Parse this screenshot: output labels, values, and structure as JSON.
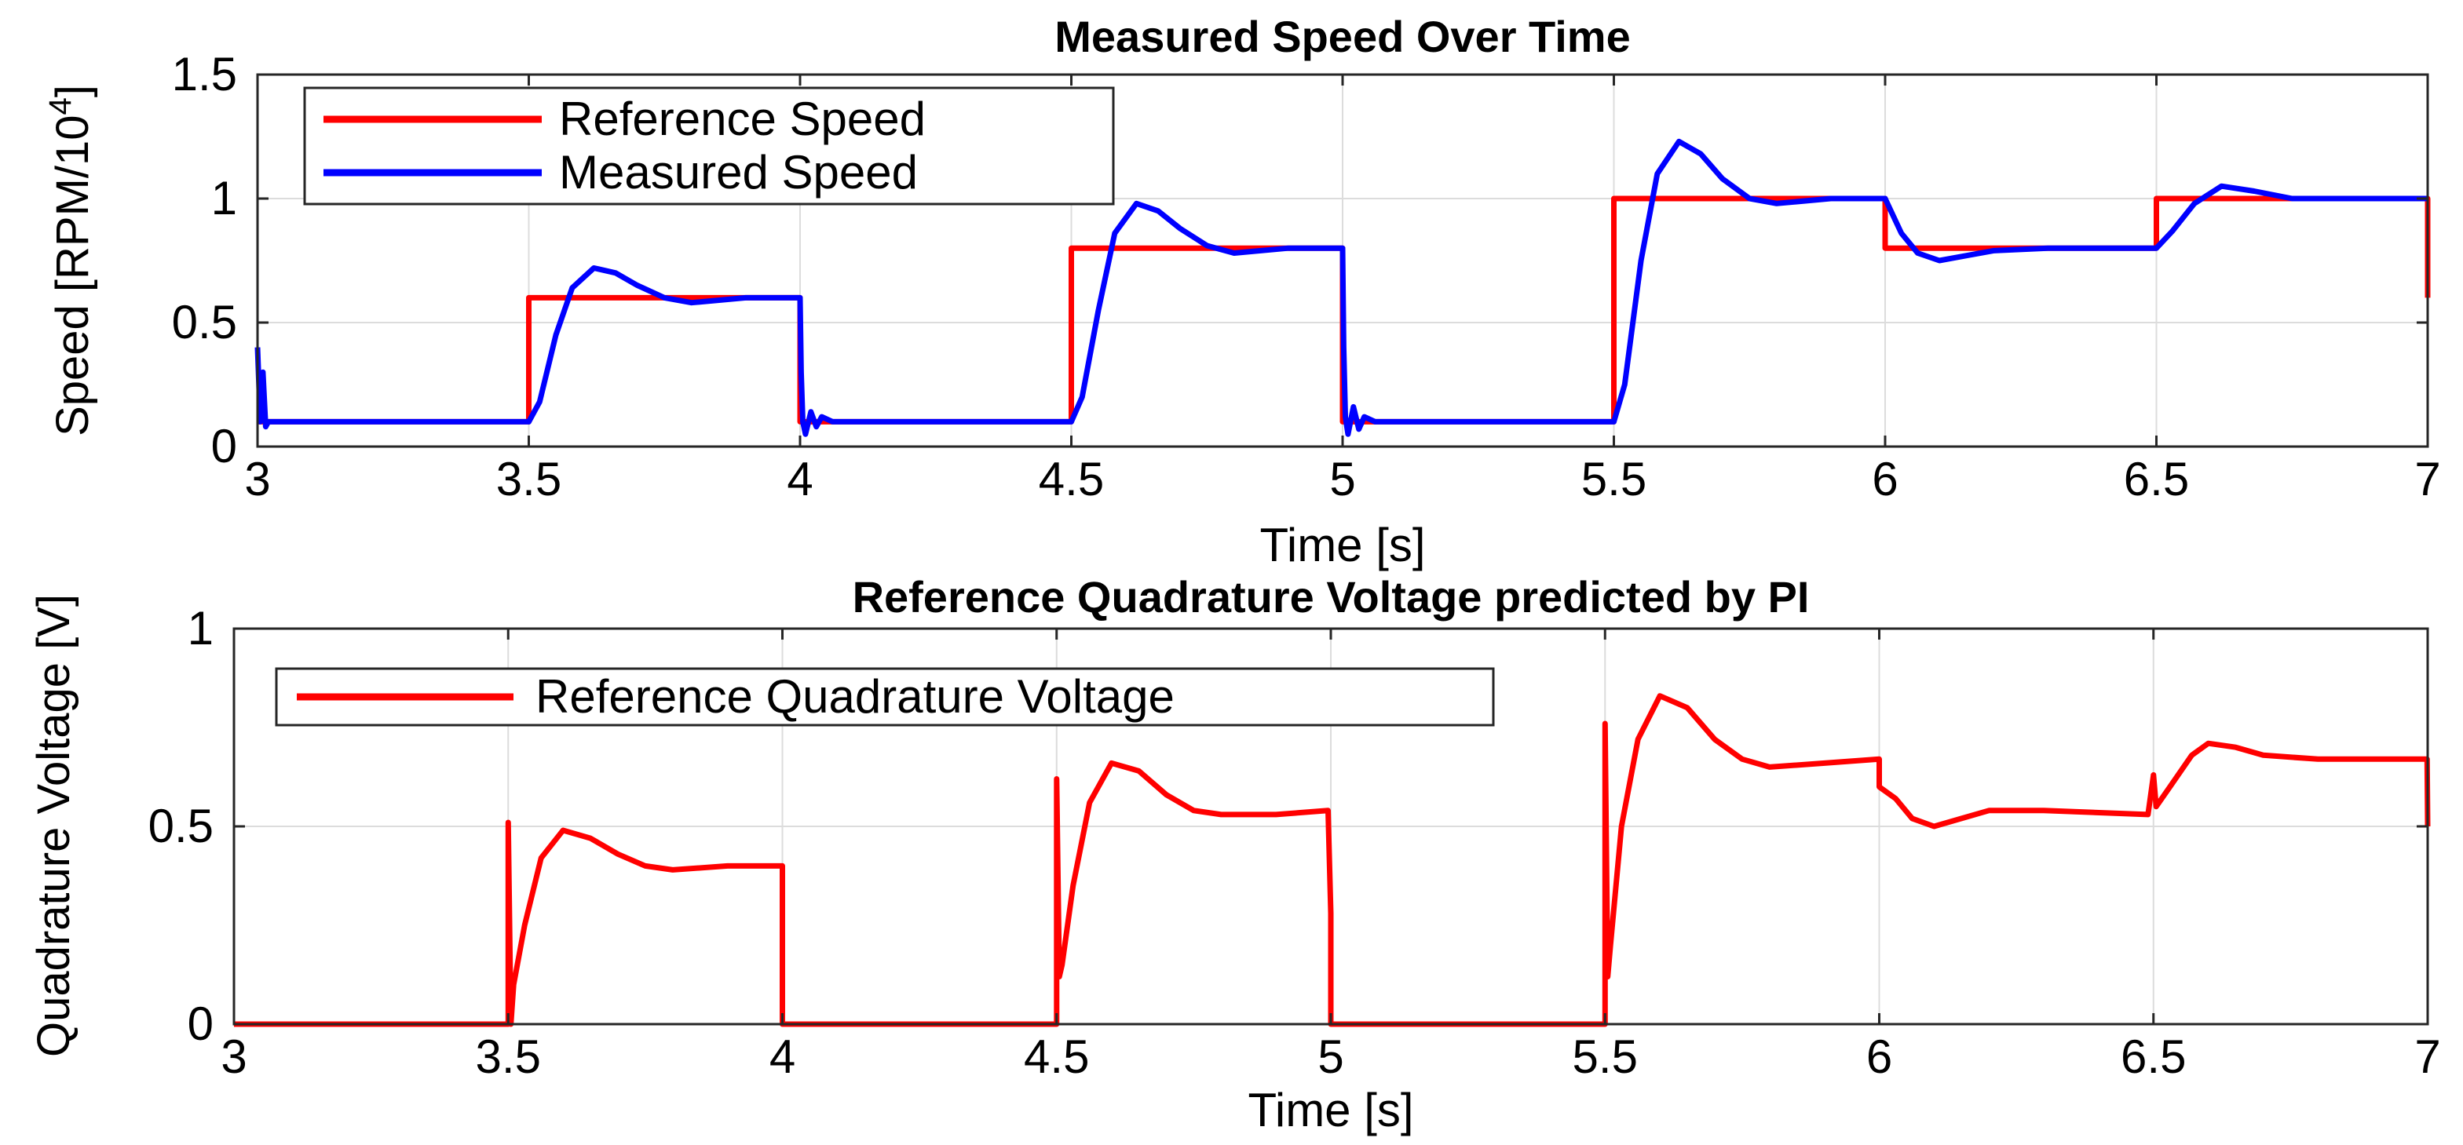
{
  "chart_data": [
    {
      "type": "line",
      "title": "Measured Speed Over Time",
      "xlabel": "Time [s]",
      "ylabel_main": "Speed [RPM/10",
      "ylabel_sup": "4",
      "ylabel_end": "]",
      "xlim": [
        3,
        7
      ],
      "ylim": [
        0,
        1.5
      ],
      "xticks": [
        3,
        3.5,
        4,
        4.5,
        5,
        5.5,
        6,
        6.5,
        7
      ],
      "xtick_labels": [
        "3",
        "3.5",
        "4",
        "4.5",
        "5",
        "5.5",
        "6",
        "6.5",
        "7"
      ],
      "yticks": [
        0,
        0.5,
        1,
        1.5
      ],
      "ytick_labels": [
        "0",
        "0.5",
        "1",
        "1.5"
      ],
      "grid": true,
      "legend_position": "top-left",
      "series": [
        {
          "name": "Reference Speed",
          "color": "#ff0000",
          "points": [
            [
              3,
              0.1
            ],
            [
              3.5,
              0.1
            ],
            [
              3.5,
              0.6
            ],
            [
              4,
              0.6
            ],
            [
              4,
              0.1
            ],
            [
              4.5,
              0.1
            ],
            [
              4.5,
              0.8
            ],
            [
              5,
              0.8
            ],
            [
              5,
              0.1
            ],
            [
              5.5,
              0.1
            ],
            [
              5.5,
              1.0
            ],
            [
              6,
              1.0
            ],
            [
              6,
              0.8
            ],
            [
              6.5,
              0.8
            ],
            [
              6.5,
              1.0
            ],
            [
              7,
              1.0
            ],
            [
              7,
              0.6
            ]
          ]
        },
        {
          "name": "Measured Speed",
          "color": "#0000ff",
          "points": [
            [
              3,
              0.4
            ],
            [
              3.005,
              0.1
            ],
            [
              3.01,
              0.3
            ],
            [
              3.015,
              0.08
            ],
            [
              3.02,
              0.1
            ],
            [
              3.5,
              0.1
            ],
            [
              3.52,
              0.18
            ],
            [
              3.55,
              0.45
            ],
            [
              3.58,
              0.64
            ],
            [
              3.62,
              0.72
            ],
            [
              3.66,
              0.7
            ],
            [
              3.7,
              0.65
            ],
            [
              3.75,
              0.6
            ],
            [
              3.8,
              0.58
            ],
            [
              3.9,
              0.6
            ],
            [
              3.99,
              0.6
            ],
            [
              4.0,
              0.6
            ],
            [
              4.002,
              0.3
            ],
            [
              4.005,
              0.1
            ],
            [
              4.01,
              0.05
            ],
            [
              4.02,
              0.14
            ],
            [
              4.03,
              0.08
            ],
            [
              4.04,
              0.12
            ],
            [
              4.06,
              0.1
            ],
            [
              4.5,
              0.1
            ],
            [
              4.52,
              0.2
            ],
            [
              4.55,
              0.55
            ],
            [
              4.58,
              0.86
            ],
            [
              4.62,
              0.98
            ],
            [
              4.66,
              0.95
            ],
            [
              4.7,
              0.88
            ],
            [
              4.75,
              0.81
            ],
            [
              4.8,
              0.78
            ],
            [
              4.9,
              0.8
            ],
            [
              5.0,
              0.8
            ],
            [
              5.002,
              0.4
            ],
            [
              5.005,
              0.12
            ],
            [
              5.01,
              0.05
            ],
            [
              5.02,
              0.16
            ],
            [
              5.03,
              0.07
            ],
            [
              5.04,
              0.12
            ],
            [
              5.06,
              0.1
            ],
            [
              5.5,
              0.1
            ],
            [
              5.52,
              0.25
            ],
            [
              5.55,
              0.75
            ],
            [
              5.58,
              1.1
            ],
            [
              5.62,
              1.23
            ],
            [
              5.66,
              1.18
            ],
            [
              5.7,
              1.08
            ],
            [
              5.75,
              1.0
            ],
            [
              5.8,
              0.98
            ],
            [
              5.9,
              1.0
            ],
            [
              6.0,
              1.0
            ],
            [
              6.03,
              0.86
            ],
            [
              6.06,
              0.78
            ],
            [
              6.1,
              0.75
            ],
            [
              6.15,
              0.77
            ],
            [
              6.2,
              0.79
            ],
            [
              6.3,
              0.8
            ],
            [
              6.5,
              0.8
            ],
            [
              6.53,
              0.87
            ],
            [
              6.57,
              0.98
            ],
            [
              6.62,
              1.05
            ],
            [
              6.68,
              1.03
            ],
            [
              6.75,
              1.0
            ],
            [
              6.85,
              1.0
            ],
            [
              7,
              1.0
            ]
          ]
        }
      ]
    },
    {
      "type": "line",
      "title": "Reference Quadrature Voltage predicted by PI",
      "xlabel": "Time [s]",
      "ylabel": "Quadrature Voltage [V]",
      "xlim": [
        3,
        7
      ],
      "ylim": [
        0,
        1
      ],
      "xticks": [
        3,
        3.5,
        4,
        4.5,
        5,
        5.5,
        6,
        6.5,
        7
      ],
      "xtick_labels": [
        "3",
        "3.5",
        "4",
        "4.5",
        "5",
        "5.5",
        "6",
        "6.5",
        "7"
      ],
      "yticks": [
        0,
        0.5,
        1
      ],
      "ytick_labels": [
        "0",
        "0.5",
        "1"
      ],
      "grid": true,
      "legend_position": "top-left",
      "series": [
        {
          "name": "Reference Quadrature Voltage",
          "color": "#ff0000",
          "points": [
            [
              3,
              0
            ],
            [
              3.5,
              0
            ],
            [
              3.5,
              0.51
            ],
            [
              3.505,
              0.0
            ],
            [
              3.51,
              0.1
            ],
            [
              3.53,
              0.25
            ],
            [
              3.56,
              0.42
            ],
            [
              3.6,
              0.49
            ],
            [
              3.65,
              0.47
            ],
            [
              3.7,
              0.43
            ],
            [
              3.75,
              0.4
            ],
            [
              3.8,
              0.39
            ],
            [
              3.9,
              0.4
            ],
            [
              4.0,
              0.4
            ],
            [
              4.0,
              0
            ],
            [
              4.5,
              0
            ],
            [
              4.5,
              0.62
            ],
            [
              4.505,
              0.12
            ],
            [
              4.51,
              0.15
            ],
            [
              4.53,
              0.35
            ],
            [
              4.56,
              0.56
            ],
            [
              4.6,
              0.66
            ],
            [
              4.65,
              0.64
            ],
            [
              4.7,
              0.58
            ],
            [
              4.75,
              0.54
            ],
            [
              4.8,
              0.53
            ],
            [
              4.9,
              0.53
            ],
            [
              4.995,
              0.54
            ],
            [
              5.0,
              0.28
            ],
            [
              5.0,
              0
            ],
            [
              5.5,
              0
            ],
            [
              5.5,
              0.76
            ],
            [
              5.505,
              0.12
            ],
            [
              5.51,
              0.2
            ],
            [
              5.53,
              0.5
            ],
            [
              5.56,
              0.72
            ],
            [
              5.6,
              0.83
            ],
            [
              5.65,
              0.8
            ],
            [
              5.7,
              0.72
            ],
            [
              5.75,
              0.67
            ],
            [
              5.8,
              0.65
            ],
            [
              5.9,
              0.66
            ],
            [
              6.0,
              0.67
            ],
            [
              6.0,
              0.6
            ],
            [
              6.03,
              0.57
            ],
            [
              6.06,
              0.52
            ],
            [
              6.1,
              0.5
            ],
            [
              6.15,
              0.52
            ],
            [
              6.2,
              0.54
            ],
            [
              6.3,
              0.54
            ],
            [
              6.49,
              0.53
            ],
            [
              6.5,
              0.63
            ],
            [
              6.505,
              0.55
            ],
            [
              6.53,
              0.6
            ],
            [
              6.57,
              0.68
            ],
            [
              6.6,
              0.71
            ],
            [
              6.65,
              0.7
            ],
            [
              6.7,
              0.68
            ],
            [
              6.8,
              0.67
            ],
            [
              6.999,
              0.67
            ],
            [
              7.0,
              0.5
            ]
          ]
        }
      ]
    }
  ]
}
